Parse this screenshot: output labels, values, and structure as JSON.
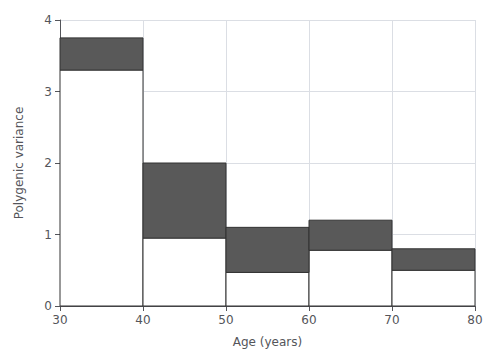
{
  "chart_data": {
    "type": "histogram",
    "xlabel": "Age (years)",
    "ylabel": "Polygenic variance",
    "bins": [
      30,
      40,
      50,
      60,
      70,
      80
    ],
    "stacked": true,
    "series": [
      {
        "color": "#ffffff",
        "values": [
          3.3,
          0.95,
          0.47,
          0.78,
          0.5
        ]
      },
      {
        "color": "#595959",
        "values": [
          0.45,
          1.05,
          0.63,
          0.42,
          0.3
        ]
      }
    ],
    "xlim": [
      30,
      80
    ],
    "xticks": [
      30,
      40,
      50,
      60,
      70,
      80
    ],
    "ylim": [
      0,
      4
    ],
    "yticks": [
      0,
      1,
      2,
      3,
      4
    ],
    "grid": true
  }
}
